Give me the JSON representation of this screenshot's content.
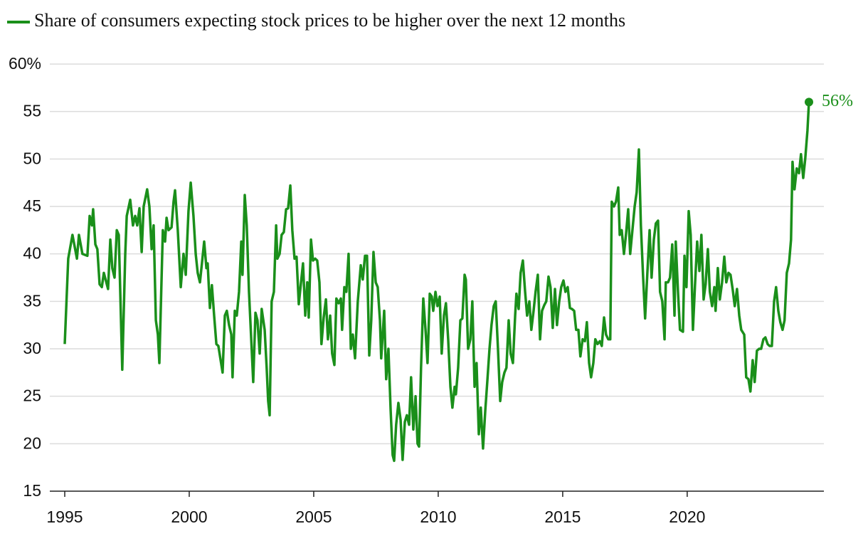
{
  "chart_data": {
    "type": "line",
    "x": [
      1995.0,
      1995.14,
      1995.31,
      1995.49,
      1995.57,
      1995.71,
      1995.91,
      1996.0,
      1996.09,
      1996.14,
      1996.23,
      1996.31,
      1996.4,
      1996.49,
      1996.57,
      1996.74,
      1996.83,
      1996.91,
      1997.0,
      1997.09,
      1997.17,
      1997.31,
      1997.43,
      1997.49,
      1997.63,
      1997.74,
      1997.83,
      1997.91,
      1998.0,
      1998.09,
      1998.17,
      1998.31,
      1998.4,
      1998.49,
      1998.57,
      1998.66,
      1998.74,
      1998.8,
      1998.94,
      1999.03,
      1999.09,
      1999.17,
      1999.29,
      1999.37,
      1999.43,
      1999.54,
      1999.66,
      1999.77,
      1999.86,
      1999.97,
      2000.06,
      2000.17,
      2000.26,
      2000.34,
      2000.43,
      2000.51,
      2000.6,
      2000.69,
      2000.74,
      2000.83,
      2000.91,
      2001.0,
      2001.09,
      2001.17,
      2001.34,
      2001.43,
      2001.51,
      2001.6,
      2001.69,
      2001.74,
      2001.83,
      2001.91,
      2002.0,
      2002.09,
      2002.14,
      2002.23,
      2002.31,
      2002.4,
      2002.49,
      2002.57,
      2002.66,
      2002.74,
      2002.83,
      2002.91,
      2003.03,
      2003.11,
      2003.17,
      2003.23,
      2003.31,
      2003.4,
      2003.49,
      2003.54,
      2003.63,
      2003.71,
      2003.8,
      2003.89,
      2003.97,
      2004.06,
      2004.14,
      2004.23,
      2004.31,
      2004.4,
      2004.49,
      2004.57,
      2004.66,
      2004.74,
      2004.8,
      2004.89,
      2004.97,
      2005.06,
      2005.14,
      2005.23,
      2005.31,
      2005.4,
      2005.49,
      2005.57,
      2005.66,
      2005.74,
      2005.83,
      2005.91,
      2006.0,
      2006.09,
      2006.14,
      2006.23,
      2006.31,
      2006.4,
      2006.49,
      2006.57,
      2006.66,
      2006.77,
      2006.89,
      2006.97,
      2007.06,
      2007.14,
      2007.23,
      2007.31,
      2007.4,
      2007.49,
      2007.57,
      2007.66,
      2007.71,
      2007.83,
      2007.91,
      2008.0,
      2008.09,
      2008.17,
      2008.23,
      2008.31,
      2008.4,
      2008.49,
      2008.57,
      2008.66,
      2008.74,
      2008.83,
      2008.91,
      2009.0,
      2009.09,
      2009.17,
      2009.23,
      2009.31,
      2009.4,
      2009.49,
      2009.57,
      2009.66,
      2009.74,
      2009.8,
      2009.89,
      2009.97,
      2010.06,
      2010.14,
      2010.23,
      2010.31,
      2010.4,
      2010.49,
      2010.57,
      2010.66,
      2010.71,
      2010.8,
      2010.89,
      2010.97,
      2011.06,
      2011.11,
      2011.2,
      2011.29,
      2011.37,
      2011.46,
      2011.54,
      2011.63,
      2011.71,
      2011.8,
      2011.89,
      2011.97,
      2012.06,
      2012.14,
      2012.23,
      2012.31,
      2012.4,
      2012.49,
      2012.57,
      2012.66,
      2012.74,
      2012.83,
      2012.91,
      2013.0,
      2013.09,
      2013.14,
      2013.23,
      2013.31,
      2013.4,
      2013.49,
      2013.57,
      2013.66,
      2013.74,
      2013.83,
      2013.91,
      2014.0,
      2014.09,
      2014.17,
      2014.26,
      2014.34,
      2014.43,
      2014.51,
      2014.6,
      2014.69,
      2014.77,
      2014.86,
      2014.94,
      2015.03,
      2015.11,
      2015.2,
      2015.29,
      2015.37,
      2015.46,
      2015.54,
      2015.63,
      2015.71,
      2015.8,
      2015.89,
      2015.97,
      2016.06,
      2016.14,
      2016.23,
      2016.31,
      2016.4,
      2016.49,
      2016.57,
      2016.66,
      2016.74,
      2016.83,
      2016.91,
      2016.97,
      2017.06,
      2017.14,
      2017.23,
      2017.29,
      2017.37,
      2017.46,
      2017.54,
      2017.63,
      2017.71,
      2017.8,
      2017.89,
      2017.97,
      2018.06,
      2018.14,
      2018.23,
      2018.31,
      2018.4,
      2018.49,
      2018.57,
      2018.66,
      2018.74,
      2018.83,
      2018.91,
      2019.0,
      2019.09,
      2019.14,
      2019.23,
      2019.31,
      2019.4,
      2019.49,
      2019.54,
      2019.63,
      2019.71,
      2019.83,
      2019.89,
      2019.97,
      2020.06,
      2020.14,
      2020.23,
      2020.31,
      2020.4,
      2020.49,
      2020.57,
      2020.66,
      2020.74,
      2020.83,
      2020.91,
      2021.0,
      2021.09,
      2021.14,
      2021.23,
      2021.31,
      2021.4,
      2021.49,
      2021.57,
      2021.66,
      2021.74,
      2021.83,
      2021.91,
      2022.0,
      2022.09,
      2022.17,
      2022.29,
      2022.37,
      2022.46,
      2022.54,
      2022.63,
      2022.71,
      2022.8,
      2022.89,
      2022.97,
      2023.06,
      2023.14,
      2023.23,
      2023.31,
      2023.4,
      2023.49,
      2023.57,
      2023.66,
      2023.74,
      2023.83,
      2023.91,
      2024.0,
      2024.09,
      2024.17,
      2024.23,
      2024.31,
      2024.4,
      2024.49,
      2024.57,
      2024.66,
      2024.74,
      2024.83,
      2024.89
    ],
    "series": [
      {
        "name": "Share of consumers expecting stock prices to be higher over the next 12 months",
        "color": "#1a8f1a",
        "values": [
          30.5,
          39.5,
          42,
          39.5,
          42,
          40,
          39.8,
          44,
          43,
          44.7,
          41,
          40.5,
          36.8,
          36.5,
          38,
          36.3,
          41.5,
          38.5,
          37.5,
          42.5,
          42,
          27.8,
          40,
          44,
          45.7,
          43,
          44,
          43,
          44.8,
          40.2,
          45,
          46.8,
          45,
          40.5,
          43,
          33,
          31.5,
          28.5,
          42.5,
          41.3,
          43.8,
          42.5,
          42.8,
          45.5,
          46.7,
          42.5,
          36.5,
          40,
          37.8,
          44.5,
          47.5,
          44,
          40,
          38,
          37,
          39,
          41.3,
          38.5,
          39,
          34.3,
          36.7,
          33.5,
          30.5,
          30.3,
          27.5,
          33.5,
          34,
          32.5,
          31.5,
          27,
          34,
          33.5,
          36,
          41.3,
          37.8,
          46.2,
          43,
          36,
          31,
          26.5,
          33.8,
          33,
          29.5,
          34.2,
          32,
          28,
          24.5,
          23,
          35,
          36,
          43,
          39.5,
          40,
          42,
          42.3,
          44.7,
          44.8,
          47.2,
          42.5,
          39.5,
          39.7,
          34.7,
          37,
          39,
          33.5,
          37,
          33.3,
          41.5,
          39.3,
          39.5,
          39.3,
          37,
          30.5,
          33.3,
          35.2,
          31,
          33.5,
          29.5,
          28.3,
          35.3,
          34.8,
          35.3,
          32,
          36.5,
          36,
          40,
          30,
          31.5,
          29,
          35,
          38.8,
          37.3,
          39.8,
          39.8,
          29.3,
          33,
          40.2,
          37,
          36.5,
          33,
          29,
          34,
          26.8,
          30,
          23.5,
          18.8,
          18.2,
          22,
          24.3,
          22.5,
          18.3,
          22.3,
          23,
          22,
          27,
          21.5,
          25,
          20,
          19.7,
          28,
          35.3,
          32,
          28.5,
          35.8,
          35.5,
          34,
          36,
          34.5,
          35.5,
          29.5,
          33.5,
          34.8,
          31,
          26,
          23.8,
          26,
          25.2,
          28,
          33,
          33.2,
          37.8,
          37.3,
          30,
          31,
          35,
          26,
          28.5,
          21,
          23.8,
          19.5,
          23.5,
          26.5,
          30,
          32.5,
          34.5,
          35,
          30,
          24.5,
          26.5,
          27.5,
          28,
          33,
          29.5,
          28.5,
          33.5,
          35.8,
          34.2,
          38,
          39.3,
          36,
          33.5,
          35,
          32,
          34,
          36,
          37.8,
          31,
          34,
          34.6,
          35,
          37.6,
          36.5,
          32.2,
          36.3,
          32.5,
          35,
          36.5,
          37.2,
          36,
          36.5,
          34.3,
          34.2,
          34,
          32,
          32,
          29.2,
          31,
          30.8,
          32.8,
          28.5,
          27,
          28.5,
          31,
          30.5,
          30.8,
          30.3,
          33.3,
          31.5,
          31,
          31,
          45.5,
          45,
          45.5,
          47,
          42,
          42.5,
          40,
          42,
          44.7,
          40,
          42.5,
          45,
          46.5,
          51,
          43,
          37.5,
          33.2,
          38,
          42.5,
          37.5,
          41.5,
          43.2,
          43.5,
          36,
          35,
          31,
          37,
          37,
          37.5,
          41,
          33.5,
          41.3,
          36,
          32,
          31.8,
          39.8,
          36.5,
          44.5,
          42,
          32,
          36.5,
          41.3,
          38.2,
          42,
          35.2,
          36.8,
          40.5,
          36,
          34.5,
          36.5,
          34,
          38.5,
          35.2,
          37,
          39.7,
          37,
          38,
          37.8,
          36.2,
          34.5,
          36.3,
          33.5,
          32,
          31.5,
          27,
          26.8,
          25.5,
          28.8,
          26.5,
          29.8,
          30,
          30,
          31,
          31.2,
          30.5,
          30.3,
          30.3,
          35,
          36.5,
          34,
          32.8,
          32,
          33,
          38,
          39,
          41.5,
          49.7,
          46.8,
          49,
          48.5,
          50.5,
          48,
          50,
          53,
          56
        ]
      }
    ],
    "end_label": "56%",
    "xlim": [
      1994.4,
      2025.49
    ],
    "xticks": [
      1995,
      2000,
      2005,
      2010,
      2015,
      2020
    ],
    "ylim": [
      15,
      60
    ],
    "yticks": [
      15,
      20,
      25,
      30,
      35,
      40,
      45,
      50,
      55,
      {
        "value": 60,
        "label": "60%"
      }
    ],
    "grid": true
  }
}
